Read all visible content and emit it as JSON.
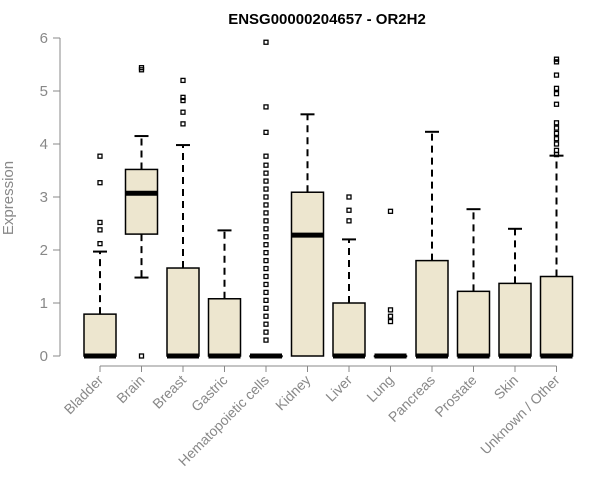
{
  "chart_data": {
    "type": "boxplot",
    "title": "ENSG00000204657 - OR2H2",
    "xlabel": "",
    "ylabel": "Expression",
    "ylim": [
      0,
      6
    ],
    "yticks": [
      0,
      1,
      2,
      3,
      4,
      5,
      6
    ],
    "grid": false,
    "legend": "none",
    "box_fill": "#ede6cf",
    "categories": [
      "Bladder",
      "Brain",
      "Breast",
      "Gastric",
      "Hematopoietic cells",
      "Kidney",
      "Liver",
      "Lung",
      "Pancreas",
      "Prostate",
      "Skin",
      "Unknown / Other"
    ],
    "boxes": [
      {
        "q1": 0,
        "median": 0,
        "q3": 0.79,
        "whisker_low": 0,
        "whisker_high": 1.97,
        "outliers": [
          2.12,
          2.38,
          2.52,
          3.27,
          3.77
        ]
      },
      {
        "q1": 2.3,
        "median": 3.07,
        "q3": 3.52,
        "whisker_low": 1.48,
        "whisker_high": 4.15,
        "outliers": [
          0,
          5.4,
          5.44
        ]
      },
      {
        "q1": 0,
        "median": 0,
        "q3": 1.66,
        "whisker_low": 0,
        "whisker_high": 3.98,
        "outliers": [
          4.38,
          4.6,
          4.82,
          4.88,
          5.2
        ]
      },
      {
        "q1": 0,
        "median": 0,
        "q3": 1.08,
        "whisker_low": 0,
        "whisker_high": 2.37,
        "outliers": []
      },
      {
        "q1": 0,
        "median": 0,
        "q3": 0,
        "whisker_low": 0,
        "whisker_high": 0,
        "outliers": [
          0.3,
          0.45,
          0.6,
          0.75,
          0.9,
          1.05,
          1.2,
          1.35,
          1.5,
          1.65,
          1.8,
          1.95,
          2.1,
          2.25,
          2.4,
          2.55,
          2.7,
          2.85,
          3.0,
          3.15,
          3.3,
          3.45,
          3.6,
          3.77,
          4.22,
          4.7,
          5.92
        ]
      },
      {
        "q1": 0,
        "median": 2.28,
        "q3": 3.09,
        "whisker_low": 0,
        "whisker_high": 4.56,
        "outliers": []
      },
      {
        "q1": 0,
        "median": 0,
        "q3": 1.0,
        "whisker_low": 0,
        "whisker_high": 2.2,
        "outliers": [
          2.55,
          2.75,
          3.0
        ]
      },
      {
        "q1": 0,
        "median": 0,
        "q3": 0,
        "whisker_low": 0,
        "whisker_high": 0,
        "outliers": [
          0.65,
          0.75,
          0.87,
          2.73
        ]
      },
      {
        "q1": 0,
        "median": 0,
        "q3": 1.8,
        "whisker_low": 0,
        "whisker_high": 4.23,
        "outliers": []
      },
      {
        "q1": 0,
        "median": 0,
        "q3": 1.22,
        "whisker_low": 0,
        "whisker_high": 2.77,
        "outliers": []
      },
      {
        "q1": 0,
        "median": 0,
        "q3": 1.37,
        "whisker_low": 0,
        "whisker_high": 2.4,
        "outliers": []
      },
      {
        "q1": 0,
        "median": 0,
        "q3": 1.5,
        "whisker_low": 0,
        "whisker_high": 3.78,
        "outliers": [
          3.8,
          3.88,
          4.0,
          4.1,
          4.2,
          4.3,
          4.4,
          4.75,
          4.95,
          5.05,
          5.3,
          5.55,
          5.6
        ]
      }
    ]
  }
}
